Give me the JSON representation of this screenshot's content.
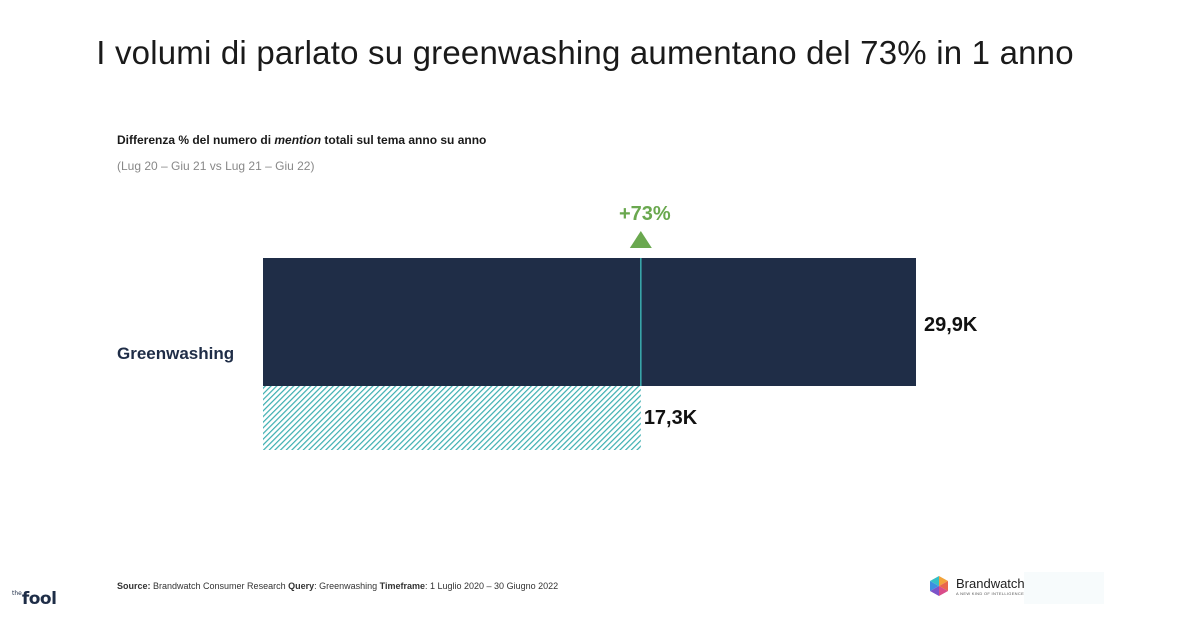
{
  "title": "I volumi di parlato su greenwashing aumentano del 73% in 1 anno",
  "subtitle_pre": "Differenza % del numero di ",
  "subtitle_em": "mention",
  "subtitle_post": " totali sul tema anno su anno",
  "subtitle2": "(Lug 20 – Giu 21 vs Lug 21 – Giu 22)",
  "chart_data": {
    "type": "bar",
    "categories": [
      "Greenwashing"
    ],
    "series": [
      {
        "values": [
          29.9
        ],
        "label": "29,9K",
        "color": "#1f2d47"
      },
      {
        "values": [
          17.3
        ],
        "label": "17,3K",
        "color": "#3aaeb0",
        "pattern": "hatched"
      }
    ],
    "annotation": {
      "text": "+73%",
      "color": "#6aa84f"
    },
    "xlim": [
      0,
      29.9
    ]
  },
  "source": {
    "source_label": "Source:",
    "source_value": " Brandwatch Consumer Research ",
    "query_label": "Query",
    "query_value": ": Greenwashing ",
    "timeframe_label": "Timeframe",
    "timeframe_value": ": 1 Luglio 2020 – 30 Giugno 2022"
  },
  "logos": {
    "fool_the": "the",
    "fool_word": "fool",
    "brandwatch_name": "Brandwatch",
    "brandwatch_tag": "A NEW KIND OF INTELLIGENCE"
  }
}
